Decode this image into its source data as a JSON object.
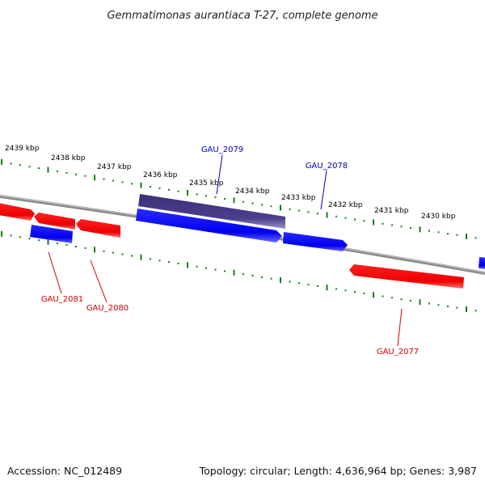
{
  "title": "Gemmatimonas aurantiaca T-27, complete genome",
  "footer": {
    "accession": "Accession: NC_012489",
    "summary": "Topology: circular; Length: 4,636,964 bp; Genes: 3,987"
  },
  "colors": {
    "backbone": "#808080",
    "forward_gene": "#0000ff",
    "reverse_gene": "#ff0000",
    "highlight_gene": "#4b3f8c",
    "tick": "#1a7a1a",
    "forward_label": "#0000cc",
    "reverse_label": "#cc0000"
  },
  "ticks": [
    "2439 kbp",
    "2438 kbp",
    "2437 kbp",
    "2436 kbp",
    "2435 kbp",
    "2434 kbp",
    "2433 kbp",
    "2432 kbp",
    "2431 kbp",
    "2430 kbp"
  ],
  "genes": [
    {
      "id": "g-fwd-edge",
      "strand": "forward"
    },
    {
      "id": "g-2078",
      "strand": "forward",
      "label": "GAU_2078"
    },
    {
      "id": "g-2079",
      "strand": "forward",
      "label": "GAU_2079"
    },
    {
      "id": "g-2079b",
      "strand": "forward",
      "highlight": true
    },
    {
      "id": "g-2080",
      "strand": "reverse",
      "label": "GAU_2080"
    },
    {
      "id": "g-2081",
      "strand": "forward",
      "label": "GAU_2081"
    },
    {
      "id": "g-rev-1",
      "strand": "reverse"
    },
    {
      "id": "g-rev-2",
      "strand": "reverse"
    },
    {
      "id": "g-2077",
      "strand": "reverse",
      "label": "GAU_2077"
    }
  ]
}
